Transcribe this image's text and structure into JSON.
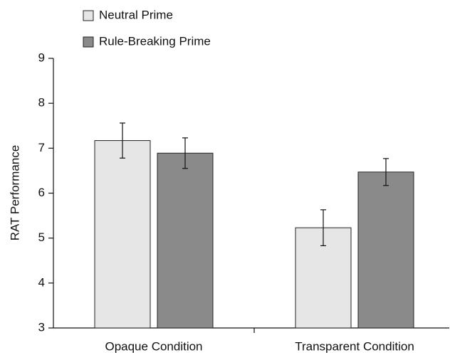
{
  "chart_data": {
    "type": "bar",
    "categories": [
      "Opaque Condition",
      "Transparent Condition"
    ],
    "ylabel": "RAT Performance",
    "ylim": [
      3,
      9
    ],
    "yticks": [
      3,
      4,
      5,
      6,
      7,
      8,
      9
    ],
    "legend": "top-left",
    "series": [
      {
        "name": "Neutral Prime",
        "color": "#e6e6e6",
        "values": [
          7.17,
          5.23
        ],
        "errors": [
          0.39,
          0.4
        ]
      },
      {
        "name": "Rule-Breaking Prime",
        "color": "#8a8a8a",
        "values": [
          6.89,
          6.47
        ],
        "errors": [
          0.34,
          0.3
        ]
      }
    ]
  }
}
